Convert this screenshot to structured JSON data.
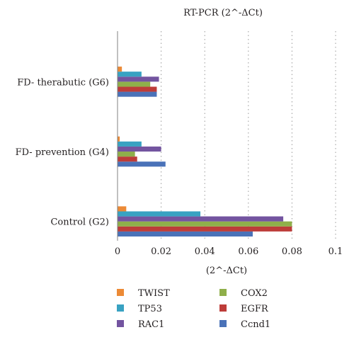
{
  "chart_data": {
    "type": "bar",
    "orientation": "horizontal",
    "title": "RT-PCR (2^-ΔCt)",
    "xlabel": "(2^-ΔCt)",
    "ylabel": "",
    "xlim": [
      0,
      0.1
    ],
    "x_ticks": [
      "0",
      "0.02",
      "0.04",
      "0.06",
      "0.08",
      "0.1"
    ],
    "grid": "vertical dotted",
    "legend_position": "bottom",
    "categories": [
      "Control (G2)",
      "FD- prevention (G4)",
      "FD- therabutic (G6)"
    ],
    "series": [
      {
        "name": "Ccnd1",
        "color": "#4a72b8",
        "values": [
          0.062,
          0.022,
          0.018
        ]
      },
      {
        "name": "EGFR",
        "color": "#bd3c39",
        "values": [
          0.08,
          0.009,
          0.018
        ]
      },
      {
        "name": "COX2",
        "color": "#8faf4a",
        "values": [
          0.08,
          0.008,
          0.015
        ]
      },
      {
        "name": "RAC1",
        "color": "#7354a0",
        "values": [
          0.076,
          0.02,
          0.019
        ]
      },
      {
        "name": "TP53",
        "color": "#38a2c2",
        "values": [
          0.038,
          0.011,
          0.011
        ]
      },
      {
        "name": "TWIST",
        "color": "#ec8a36",
        "values": [
          0.004,
          0.001,
          0.002
        ]
      }
    ],
    "legend_order": [
      "TWIST",
      "COX2",
      "TP53",
      "EGFR",
      "RAC1",
      "Ccnd1"
    ]
  }
}
